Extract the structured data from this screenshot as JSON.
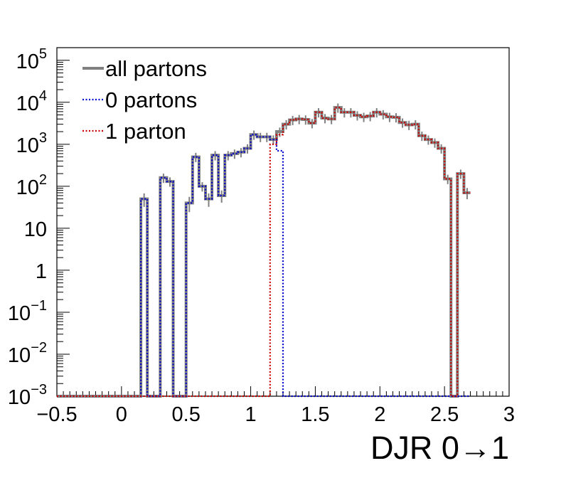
{
  "chart_data": {
    "type": "histogram",
    "xlabel": "DJR 0→1",
    "ylabel": "",
    "log_y": true,
    "xlim": [
      -0.5,
      3.0
    ],
    "ylim": [
      0.001,
      200000
    ],
    "bin_width": 0.05,
    "bins_start": -0.5,
    "x_ticks": [
      -0.5,
      0,
      0.5,
      1,
      1.5,
      2,
      2.5,
      3
    ],
    "x_tick_labels": [
      "−0.5",
      "0",
      "0.5",
      "1",
      "1.5",
      "2",
      "2.5",
      "3"
    ],
    "y_ticks": [
      {
        "value": 0.001,
        "base": "10",
        "exp": "−3"
      },
      {
        "value": 0.01,
        "base": "10",
        "exp": "−2"
      },
      {
        "value": 0.1,
        "base": "10",
        "exp": "−1"
      },
      {
        "value": 1,
        "base": "1",
        "exp": ""
      },
      {
        "value": 10,
        "base": "10",
        "exp": ""
      },
      {
        "value": 100,
        "base": "10",
        "exp": "2"
      },
      {
        "value": 1000,
        "base": "10",
        "exp": "3"
      },
      {
        "value": 10000,
        "base": "10",
        "exp": "4"
      },
      {
        "value": 100000,
        "base": "10",
        "exp": "5"
      }
    ],
    "legend": {
      "placement": "top-left"
    },
    "series": [
      {
        "name": "all partons",
        "color": "#808080",
        "line": "solid",
        "values": [
          0,
          0,
          0,
          0,
          0,
          0,
          0,
          0,
          0,
          0,
          0,
          0,
          0,
          50,
          0,
          0,
          160,
          130,
          0,
          0,
          40,
          500,
          100,
          50,
          550,
          60,
          550,
          600,
          650,
          800,
          1700,
          1500,
          1500,
          1300,
          2000,
          3000,
          3800,
          4000,
          3900,
          3200,
          5800,
          4200,
          4000,
          7500,
          5800,
          5800,
          4900,
          4500,
          4700,
          5800,
          5200,
          4500,
          4400,
          3300,
          2900,
          3000,
          1600,
          1300,
          1100,
          800,
          150,
          0,
          200,
          70
        ]
      },
      {
        "name": "0 partons",
        "color": "#0000cc",
        "line": "dotted",
        "values": [
          0,
          0,
          0,
          0,
          0,
          0,
          0,
          0,
          0,
          0,
          0,
          0,
          0,
          50,
          0,
          0,
          160,
          130,
          0,
          0,
          40,
          500,
          100,
          50,
          550,
          60,
          550,
          600,
          650,
          800,
          1700,
          1500,
          1500,
          1300,
          700,
          0,
          0,
          0,
          0,
          0,
          0,
          0,
          0,
          0,
          0,
          0,
          0,
          0,
          0,
          0,
          0,
          0,
          0,
          0,
          0,
          0,
          0,
          0,
          0,
          0,
          0,
          0,
          0,
          0
        ]
      },
      {
        "name": "1 parton",
        "color": "#cc0000",
        "line": "dotted",
        "values": [
          0,
          0,
          0,
          0,
          0,
          0,
          0,
          0,
          0,
          0,
          0,
          0,
          0,
          0,
          0,
          0,
          0,
          0,
          0,
          0,
          0,
          0,
          0,
          0,
          0,
          0,
          0,
          0,
          0,
          0,
          0,
          0,
          0,
          1000,
          1700,
          3000,
          3800,
          4000,
          3900,
          3200,
          5800,
          4200,
          4000,
          7500,
          5800,
          5800,
          4900,
          4500,
          4700,
          5800,
          5200,
          4500,
          4400,
          3300,
          2900,
          3000,
          1600,
          1300,
          1100,
          800,
          150,
          0,
          200,
          70
        ]
      }
    ]
  }
}
